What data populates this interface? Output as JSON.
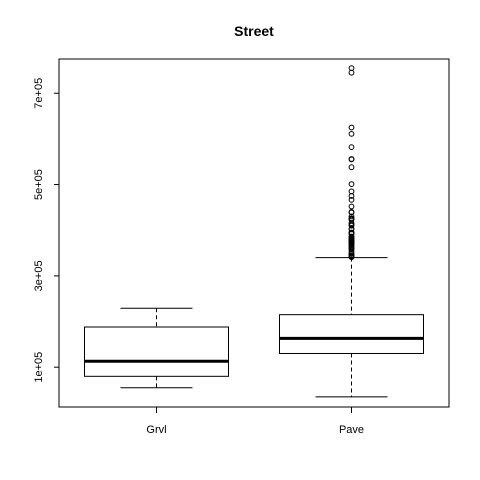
{
  "chart_data": {
    "type": "boxplot",
    "title": "Street",
    "xlabel": "",
    "ylabel": "",
    "categories": [
      "Grvl",
      "Pave"
    ],
    "ylim": [
      12789,
      775000
    ],
    "yticks": [
      100000,
      300000,
      500000,
      700000
    ],
    "ytick_labels": [
      "1e+05",
      "3e+05",
      "5e+05",
      "7e+05"
    ],
    "grid": false,
    "boxes": [
      {
        "name": "Grvl",
        "whisker_low": 55000,
        "q1": 80000,
        "median": 113000,
        "q3": 188000,
        "whisker_high": 229000,
        "outliers": []
      },
      {
        "name": "Pave",
        "whisker_low": 34900,
        "q1": 130000,
        "median": 163000,
        "q3": 215000,
        "whisker_high": 340000,
        "outliers": [
          745000,
          755000,
          625000,
          611000,
          582000,
          556000,
          555000,
          538000,
          501000,
          485000,
          475000,
          466500,
          451950,
          440000,
          438780,
          430000,
          426000,
          424870,
          423000,
          415298,
          412500,
          410000,
          402861,
          402000,
          395000,
          394617,
          394432,
          392500,
          392000,
          386250,
          385000,
          383970,
          381000,
          380000,
          378500,
          377500,
          377426,
          375000,
          374000,
          372500,
          372402,
          370878,
          369900,
          369000,
          367294,
          365000,
          361919,
          360000,
          359100,
          354000,
          350000,
          348000,
          345000,
          344133,
          342643,
          341000
        ]
      }
    ]
  }
}
